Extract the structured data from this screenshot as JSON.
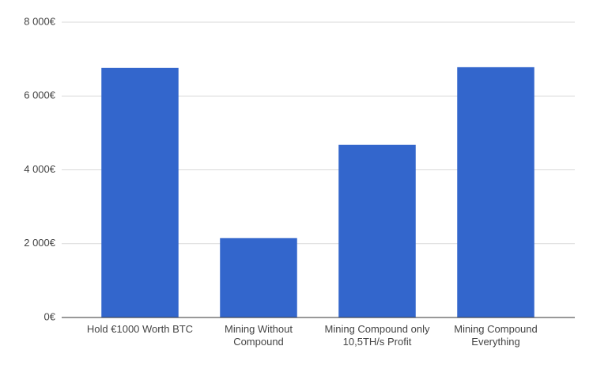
{
  "chart_data": {
    "type": "bar",
    "categories": [
      "Hold €1000 Worth BTC",
      "Mining Without Compound",
      "Mining Compound only 10,5TH/s Profit",
      "Mining Compound Everything"
    ],
    "values": [
      6760,
      2150,
      4680,
      6780
    ],
    "color": "#3366cc",
    "ylim": [
      0,
      8000
    ],
    "yticks": [
      {
        "value": 0,
        "label": "0€"
      },
      {
        "value": 2000,
        "label": "2 000€"
      },
      {
        "value": 4000,
        "label": "4 000€"
      },
      {
        "value": 6000,
        "label": "6 000€"
      },
      {
        "value": 8000,
        "label": "8 000€"
      }
    ],
    "grid": true
  }
}
